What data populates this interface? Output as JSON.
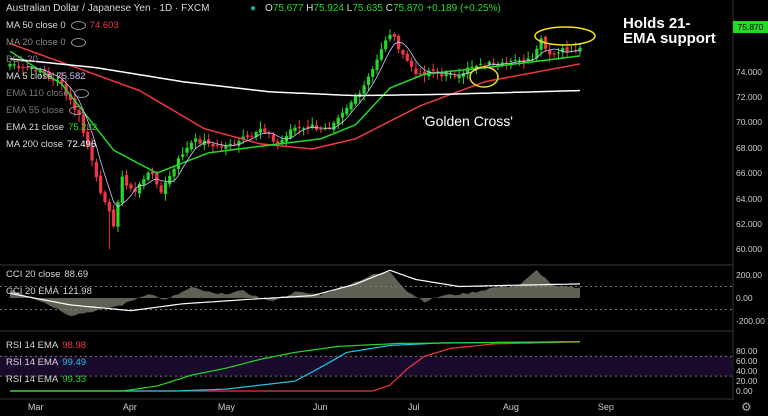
{
  "header": {
    "symbol": "Australian Dollar / Japanese Yen · 1D · FXCM",
    "open_label": "O",
    "open": "75.677",
    "high_label": "H",
    "high": "75.924",
    "low_label": "L",
    "low": "75.635",
    "close_label": "C",
    "close": "75.870",
    "change": "+0.189 (+0.25%)"
  },
  "legend": [
    {
      "label": "MA 50 close 0",
      "value": "74.603",
      "color": "#f23645"
    },
    {
      "label": "MA 20 close 0",
      "value": "",
      "color": "#888888"
    },
    {
      "label": "BOL 20",
      "value": "",
      "color": "#888888"
    },
    {
      "label": "MA 5 close",
      "value": "75.582",
      "color": "#c9c9ff"
    },
    {
      "label": "EMA 110 close",
      "value": "",
      "color": "#777777"
    },
    {
      "label": "EMA 55 close",
      "value": "",
      "color": "#777777"
    },
    {
      "label": "EMA 21 close",
      "value": "75.232",
      "color": "#26d926"
    },
    {
      "label": "MA 200 close",
      "value": "72.496",
      "color": "#ffffff"
    }
  ],
  "cci_legend": [
    {
      "label": "CCI 20 close",
      "value": "88.69",
      "color": "#ffffff"
    },
    {
      "label": "CCI 20 EMA",
      "value": "121.98",
      "color": "#ffffff"
    }
  ],
  "rsi_legend": [
    {
      "label": "RSI 14 EMA",
      "value": "98.98",
      "color": "#f23645"
    },
    {
      "label": "RSI 14 EMA",
      "value": "99.49",
      "color": "#22c4e6"
    },
    {
      "label": "RSI 14 EMA",
      "value": "99.33",
      "color": "#26d926"
    }
  ],
  "annotations": {
    "holds": "Holds 21-EMA support",
    "golden_cross": "'Golden Cross'"
  },
  "price_tags": [
    {
      "value": "75.870",
      "color": "#26d926"
    }
  ],
  "icons": [
    "eye-hidden-icon",
    "gear-icon"
  ],
  "chart_data": [
    {
      "type": "candlestick",
      "title": "Australian Dollar / Japanese Yen · 1D · FXCM",
      "x": [
        "Mar",
        "Apr",
        "May",
        "Jun",
        "Jul",
        "Aug",
        "Sep"
      ],
      "ylim": [
        59,
        79
      ],
      "yticks": [
        60.0,
        62.0,
        64.0,
        66.0,
        68.0,
        70.0,
        72.0,
        74.0
      ],
      "anchors": [
        {
          "day": 0,
          "close": 74.6
        },
        {
          "day": 6,
          "close": 74.2
        },
        {
          "day": 12,
          "close": 73.0
        },
        {
          "day": 16,
          "close": 70.5
        },
        {
          "day": 19,
          "close": 67.0
        },
        {
          "day": 22,
          "close": 63.5
        },
        {
          "day": 24,
          "close": 62.0
        },
        {
          "day": 26,
          "close": 65.5
        },
        {
          "day": 29,
          "close": 64.5
        },
        {
          "day": 32,
          "close": 66.2
        },
        {
          "day": 35,
          "close": 64.6
        },
        {
          "day": 38,
          "close": 66.5
        },
        {
          "day": 42,
          "close": 68.6
        },
        {
          "day": 46,
          "close": 68.3
        },
        {
          "day": 50,
          "close": 68.0
        },
        {
          "day": 54,
          "close": 68.9
        },
        {
          "day": 58,
          "close": 69.4
        },
        {
          "day": 62,
          "close": 68.3
        },
        {
          "day": 66,
          "close": 69.6
        },
        {
          "day": 70,
          "close": 69.7
        },
        {
          "day": 74,
          "close": 69.3
        },
        {
          "day": 78,
          "close": 71.0
        },
        {
          "day": 82,
          "close": 73.0
        },
        {
          "day": 85,
          "close": 75.0
        },
        {
          "day": 88,
          "close": 77.0
        },
        {
          "day": 90,
          "close": 76.0
        },
        {
          "day": 92,
          "close": 74.8
        },
        {
          "day": 95,
          "close": 73.6
        },
        {
          "day": 98,
          "close": 74.0
        },
        {
          "day": 102,
          "close": 73.6
        },
        {
          "day": 106,
          "close": 74.2
        },
        {
          "day": 110,
          "close": 74.5
        },
        {
          "day": 114,
          "close": 74.9
        },
        {
          "day": 118,
          "close": 74.7
        },
        {
          "day": 121,
          "close": 75.2
        },
        {
          "day": 123,
          "close": 76.6
        },
        {
          "day": 125,
          "close": 75.4
        },
        {
          "day": 128,
          "close": 75.7
        },
        {
          "day": 132,
          "close": 75.87
        }
      ],
      "days": 133,
      "day_labels": {
        "Mar": 6,
        "Apr": 28,
        "May": 50,
        "Jun": 72,
        "Jul": 94,
        "Aug": 116,
        "Sep": 138
      },
      "low_spike": {
        "day": 23,
        "low": 60.0
      },
      "series": [
        {
          "name": "MA 50 close 0",
          "color": "#f23645",
          "values": [
            {
              "day": 0,
              "close": 76.2
            },
            {
              "day": 30,
              "close": 72.5
            },
            {
              "day": 45,
              "close": 69.5
            },
            {
              "day": 58,
              "close": 68.3
            },
            {
              "day": 70,
              "close": 67.9
            },
            {
              "day": 80,
              "close": 68.7
            },
            {
              "day": 95,
              "close": 71.3
            },
            {
              "day": 110,
              "close": 73.2
            },
            {
              "day": 132,
              "close": 74.6
            }
          ]
        },
        {
          "name": "EMA 21 close",
          "color": "#26d926",
          "values": [
            {
              "day": 0,
              "close": 75.6
            },
            {
              "day": 12,
              "close": 73.0
            },
            {
              "day": 24,
              "close": 67.8
            },
            {
              "day": 34,
              "close": 66.0
            },
            {
              "day": 46,
              "close": 67.6
            },
            {
              "day": 60,
              "close": 68.2
            },
            {
              "day": 72,
              "close": 68.7
            },
            {
              "day": 80,
              "close": 69.8
            },
            {
              "day": 88,
              "close": 72.7
            },
            {
              "day": 96,
              "close": 73.8
            },
            {
              "day": 110,
              "close": 74.3
            },
            {
              "day": 132,
              "close": 75.23
            }
          ]
        },
        {
          "name": "MA 200 close",
          "color": "#ffffff",
          "values": [
            {
              "day": 0,
              "close": 75.0
            },
            {
              "day": 20,
              "close": 74.3
            },
            {
              "day": 40,
              "close": 73.2
            },
            {
              "day": 60,
              "close": 72.4
            },
            {
              "day": 80,
              "close": 72.1
            },
            {
              "day": 100,
              "close": 72.2
            },
            {
              "day": 132,
              "close": 72.5
            }
          ]
        },
        {
          "name": "MA 5 close",
          "color": "#c9c9ff",
          "values": "smoothed-close"
        }
      ]
    },
    {
      "type": "area",
      "title": "CCI 20 close",
      "ylim": [
        -260,
        260
      ],
      "yticks": [
        200.0,
        0.0,
        -200.0
      ],
      "series": [
        {
          "name": "CCI 20 close",
          "color": "#808070",
          "values": [
            {
              "day": 0,
              "v": 80
            },
            {
              "day": 8,
              "v": -40
            },
            {
              "day": 14,
              "v": -150
            },
            {
              "day": 20,
              "v": -110
            },
            {
              "day": 26,
              "v": -60
            },
            {
              "day": 32,
              "v": 40
            },
            {
              "day": 36,
              "v": -20
            },
            {
              "day": 42,
              "v": 90
            },
            {
              "day": 48,
              "v": 30
            },
            {
              "day": 54,
              "v": 60
            },
            {
              "day": 60,
              "v": -30
            },
            {
              "day": 66,
              "v": 50
            },
            {
              "day": 72,
              "v": 30
            },
            {
              "day": 78,
              "v": 110
            },
            {
              "day": 84,
              "v": 200
            },
            {
              "day": 88,
              "v": 230
            },
            {
              "day": 92,
              "v": 60
            },
            {
              "day": 96,
              "v": -30
            },
            {
              "day": 100,
              "v": 20
            },
            {
              "day": 106,
              "v": 40
            },
            {
              "day": 112,
              "v": 90
            },
            {
              "day": 118,
              "v": 110
            },
            {
              "day": 122,
              "v": 240
            },
            {
              "day": 126,
              "v": 100
            },
            {
              "day": 132,
              "v": 88.69
            }
          ]
        },
        {
          "name": "CCI 20 EMA",
          "color": "#ffffff",
          "values": [
            {
              "day": 0,
              "v": 40
            },
            {
              "day": 14,
              "v": -60
            },
            {
              "day": 28,
              "v": -110
            },
            {
              "day": 40,
              "v": -50
            },
            {
              "day": 56,
              "v": -10
            },
            {
              "day": 70,
              "v": 20
            },
            {
              "day": 80,
              "v": 120
            },
            {
              "day": 88,
              "v": 240
            },
            {
              "day": 94,
              "v": 160
            },
            {
              "day": 104,
              "v": 100
            },
            {
              "day": 116,
              "v": 110
            },
            {
              "day": 132,
              "v": 121.98
            }
          ]
        }
      ]
    },
    {
      "type": "line",
      "title": "RSI 14 EMA",
      "ylim": [
        -10,
        115
      ],
      "yticks": [
        80.0,
        60.0,
        40.0,
        20.0,
        0.0
      ],
      "series": [
        {
          "name": "RSI 14 EMA",
          "color": "#f23645",
          "values": [
            {
              "day": 0,
              "v": 0
            },
            {
              "day": 84,
              "v": 0
            },
            {
              "day": 88,
              "v": 12
            },
            {
              "day": 92,
              "v": 45
            },
            {
              "day": 96,
              "v": 70
            },
            {
              "day": 102,
              "v": 86
            },
            {
              "day": 112,
              "v": 95
            },
            {
              "day": 132,
              "v": 98.98
            }
          ]
        },
        {
          "name": "RSI 14 EMA",
          "color": "#22c4e6",
          "values": [
            {
              "day": 0,
              "v": 0
            },
            {
              "day": 38,
              "v": 0
            },
            {
              "day": 50,
              "v": 4
            },
            {
              "day": 58,
              "v": 12
            },
            {
              "day": 66,
              "v": 20
            },
            {
              "day": 72,
              "v": 48
            },
            {
              "day": 78,
              "v": 78
            },
            {
              "day": 88,
              "v": 92
            },
            {
              "day": 100,
              "v": 97
            },
            {
              "day": 132,
              "v": 99.49
            }
          ]
        },
        {
          "name": "RSI 14 EMA",
          "color": "#26d926",
          "values": [
            {
              "day": 0,
              "v": 0
            },
            {
              "day": 26,
              "v": 0
            },
            {
              "day": 34,
              "v": 10
            },
            {
              "day": 42,
              "v": 32
            },
            {
              "day": 50,
              "v": 46
            },
            {
              "day": 58,
              "v": 64
            },
            {
              "day": 66,
              "v": 78
            },
            {
              "day": 76,
              "v": 90
            },
            {
              "day": 90,
              "v": 96
            },
            {
              "day": 132,
              "v": 99.33
            }
          ]
        }
      ]
    }
  ]
}
